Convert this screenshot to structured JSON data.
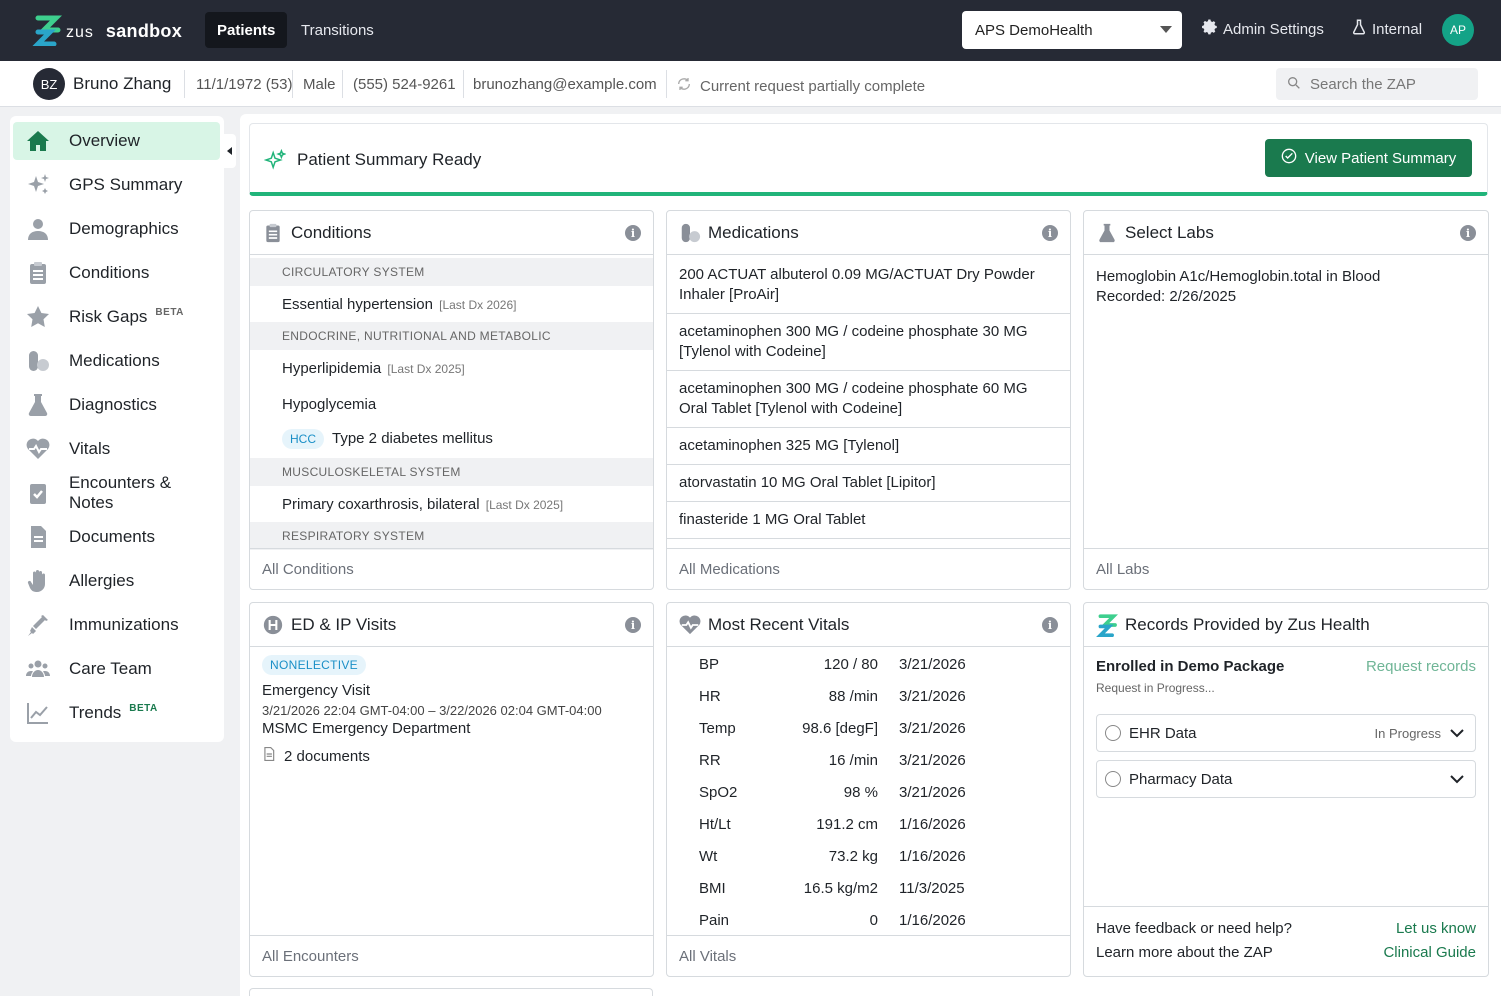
{
  "brand": {
    "zus": "zus",
    "env": "sandbox"
  },
  "nav": {
    "tabs": [
      "Patients",
      "Transitions"
    ]
  },
  "org_select": {
    "value": "APS DemoHealth"
  },
  "top_links": {
    "admin": "Admin Settings",
    "internal": "Internal"
  },
  "user": {
    "initials": "AP"
  },
  "patient": {
    "initials": "BZ",
    "name": "Bruno Zhang",
    "dob": "11/1/1972 (53)",
    "sex": "Male",
    "phone": "(555) 524-9261",
    "email": "brunozhang@example.com",
    "status": "Current request partially complete"
  },
  "search": {
    "placeholder": "Search the ZAP"
  },
  "sidebar": {
    "items": [
      {
        "label": "Overview",
        "icon": "home-icon"
      },
      {
        "label": "GPS Summary",
        "icon": "sparkle-icon"
      },
      {
        "label": "Demographics",
        "icon": "person-icon"
      },
      {
        "label": "Conditions",
        "icon": "clipboard-icon"
      },
      {
        "label": "Risk Gaps",
        "icon": "star-icon",
        "badge": "BETA"
      },
      {
        "label": "Medications",
        "icon": "pill-icon"
      },
      {
        "label": "Diagnostics",
        "icon": "flask-icon"
      },
      {
        "label": "Vitals",
        "icon": "heart-pulse-icon"
      },
      {
        "label": "Encounters & Notes",
        "icon": "clipboard-check-icon"
      },
      {
        "label": "Documents",
        "icon": "document-icon"
      },
      {
        "label": "Allergies",
        "icon": "hand-icon"
      },
      {
        "label": "Immunizations",
        "icon": "syringe-icon"
      },
      {
        "label": "Care Team",
        "icon": "group-icon"
      },
      {
        "label": "Trends",
        "icon": "trend-icon",
        "badge": "BETA"
      }
    ]
  },
  "summary": {
    "title": "Patient Summary Ready",
    "button": "View Patient Summary"
  },
  "conditions": {
    "title": "Conditions",
    "groups": [
      "CIRCULATORY SYSTEM",
      "ENDOCRINE, NUTRITIONAL AND METABOLIC",
      "MUSCULOSKELETAL SYSTEM",
      "RESPIRATORY SYSTEM"
    ],
    "rows": [
      {
        "name": "Essential hypertension",
        "dx": "[Last Dx 2026]"
      },
      {
        "name": "Hyperlipidemia",
        "dx": "[Last Dx 2025]"
      },
      {
        "name": "Hypoglycemia",
        "dx": ""
      },
      {
        "name": "Type 2 diabetes mellitus",
        "dx": "",
        "tag": "HCC"
      },
      {
        "name": "Primary coxarthrosis, bilateral",
        "dx": "[Last Dx 2025]"
      }
    ],
    "footer": "All Conditions"
  },
  "medications": {
    "title": "Medications",
    "rows": [
      "200 ACTUAT albuterol 0.09 MG/ACTUAT Dry Powder Inhaler [ProAir]",
      "acetaminophen 300 MG / codeine phosphate 30 MG [Tylenol with Codeine]",
      "acetaminophen 300 MG / codeine phosphate 60 MG Oral Tablet [Tylenol with Codeine]",
      "acetaminophen 325 MG [Tylenol]",
      "atorvastatin 10 MG Oral Tablet [Lipitor]",
      "finasteride 1 MG Oral Tablet"
    ],
    "footer": "All Medications"
  },
  "labs": {
    "title": "Select Labs",
    "name": "Hemoglobin A1c/Hemoglobin.total in Blood",
    "recorded": "Recorded: 2/26/2025",
    "footer": "All Labs"
  },
  "visits": {
    "title": "ED & IP Visits",
    "badge": "NONELECTIVE",
    "visit_title": "Emergency Visit",
    "time": "3/21/2026 22:04 GMT-04:00 – 3/22/2026 02:04 GMT-04:00",
    "location": "MSMC Emergency Department",
    "docs": "2 documents",
    "footer": "All Encounters"
  },
  "vitals": {
    "title": "Most Recent Vitals",
    "rows": [
      {
        "name": "BP",
        "value": "120 / 80",
        "date": "3/21/2026"
      },
      {
        "name": "HR",
        "value": "88 /min",
        "date": "3/21/2026"
      },
      {
        "name": "Temp",
        "value": "98.6 [degF]",
        "date": "3/21/2026"
      },
      {
        "name": "RR",
        "value": "16 /min",
        "date": "3/21/2026"
      },
      {
        "name": "SpO2",
        "value": "98 %",
        "date": "3/21/2026"
      },
      {
        "name": "Ht/Lt",
        "value": "191.2 cm",
        "date": "1/16/2026"
      },
      {
        "name": "Wt",
        "value": "73.2 kg",
        "date": "1/16/2026"
      },
      {
        "name": "BMI",
        "value": "16.5 kg/m2",
        "date": "11/3/2025"
      },
      {
        "name": "Pain",
        "value": "0",
        "date": "1/16/2026"
      }
    ],
    "footer": "All Vitals"
  },
  "records": {
    "title": "Records Provided by Zus Health",
    "enrolled": "Enrolled in Demo Package",
    "request_link": "Request records",
    "progress": "Request in Progress...",
    "items": [
      {
        "label": "EHR Data",
        "status": "In Progress"
      },
      {
        "label": "Pharmacy Data",
        "status": ""
      }
    ],
    "feedback_q": "Have feedback or need help?",
    "feedback_a": "Let us know",
    "learn_q": "Learn more about the ZAP",
    "learn_a": "Clinical Guide"
  },
  "colors": {
    "nav_bg": "#262a35",
    "accent_green": "#1a7a4e",
    "active_bg": "#d8f5e6",
    "banner_line": "#21b47a"
  }
}
